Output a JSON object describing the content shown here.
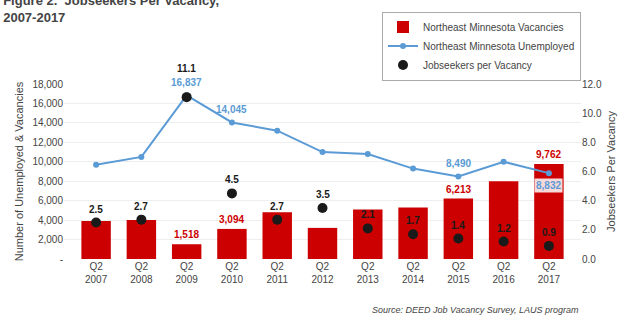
{
  "chart_data": {
    "type": "bar",
    "title": "Figure 2.  Jobseekers Per Vacancy,\n2007-2017",
    "categories": [
      "Q2\n2007",
      "Q2\n2008",
      "Q2\n2009",
      "Q2\n2010",
      "Q2\n2011",
      "Q2\n2012",
      "Q2\n2013",
      "Q2\n2014",
      "Q2\n2015",
      "Q2\n2016",
      "Q2\n2017"
    ],
    "series": [
      {
        "name": "Northeast Minnesota Vacancies",
        "type": "bar",
        "color": "#CC0000",
        "values": [
          3900,
          4000,
          1518,
          3094,
          4800,
          3200,
          5100,
          5300,
          6213,
          8000,
          9762
        ],
        "value_labels": [
          null,
          null,
          "1,518",
          "3,094",
          null,
          null,
          null,
          null,
          "6,213",
          null,
          "9,762"
        ]
      },
      {
        "name": "Northeast Minnesota Unemployed",
        "type": "line",
        "color": "#5B9BD5",
        "marker": "circle",
        "values": [
          9700,
          10500,
          16837,
          14045,
          13200,
          11000,
          10800,
          9300,
          8490,
          10000,
          8832
        ],
        "value_labels": [
          null,
          null,
          "16,837",
          "14,045",
          null,
          null,
          null,
          null,
          "8,490",
          null,
          "8,832"
        ]
      },
      {
        "name": "Jobseekers per Vacancy",
        "type": "scatter",
        "axis": "y2",
        "color": "#1A1A1A",
        "marker": "circle",
        "values": [
          2.5,
          2.7,
          11.1,
          4.5,
          2.7,
          3.5,
          2.1,
          1.7,
          1.4,
          1.2,
          0.9
        ],
        "value_labels": [
          "2.5",
          "2.7",
          "11.1",
          "4.5",
          "2.7",
          "3.5",
          "2.1",
          "1.7",
          "1.4",
          "1.2",
          "0.9"
        ]
      }
    ],
    "ylabel": "Number of Unemployed & Vacancies",
    "y2label": "Jobseekers Per Vacancy",
    "ylim": [
      0,
      18000
    ],
    "yticks": [
      {
        "value": 0,
        "label": "-"
      },
      {
        "value": 2000,
        "label": "2,000"
      },
      {
        "value": 4000,
        "label": "4,000"
      },
      {
        "value": 6000,
        "label": "6,000"
      },
      {
        "value": 8000,
        "label": "8,000"
      },
      {
        "value": 10000,
        "label": "10,000"
      },
      {
        "value": 12000,
        "label": "12,000"
      },
      {
        "value": 14000,
        "label": "14,000"
      },
      {
        "value": 16000,
        "label": "16,000"
      },
      {
        "value": 18000,
        "label": "18,000"
      }
    ],
    "y2lim": [
      0,
      12.0
    ],
    "y2ticks": [
      {
        "value": 0.0,
        "label": "0.0"
      },
      {
        "value": 2.0,
        "label": "2.0"
      },
      {
        "value": 4.0,
        "label": "4.0"
      },
      {
        "value": 6.0,
        "label": "6.0"
      },
      {
        "value": 8.0,
        "label": "8.0"
      },
      {
        "value": 10.0,
        "label": "10.0"
      },
      {
        "value": 12.0,
        "label": "12.0"
      }
    ],
    "grid": true,
    "legend": "upper right",
    "annotations": [
      "Source: DEED Job Vacancy Survey, LAUS program"
    ]
  }
}
